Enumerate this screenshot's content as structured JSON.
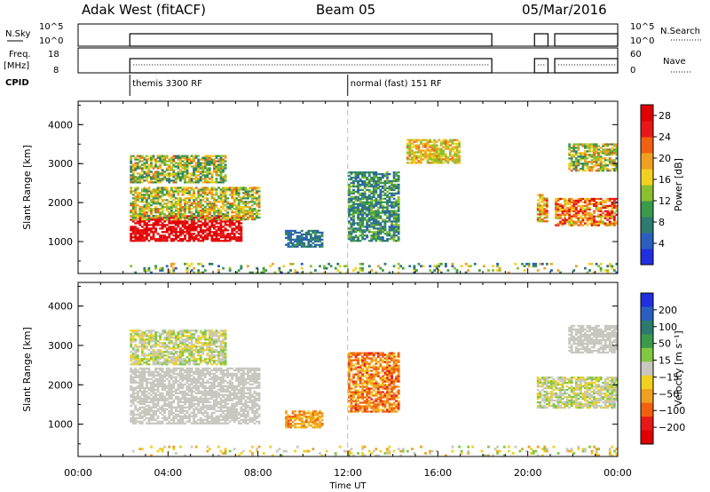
{
  "header": {
    "station": "Adak West (fitACF)",
    "beam": "Beam 05",
    "date": "05/Mar/2016"
  },
  "param_panels": {
    "nsky_label": "N.Sky",
    "nsearch_label": "N.Search",
    "freq_label_top": "Freq.",
    "freq_label_bottom": "[MHz]",
    "nave_label": "Nave",
    "cpid_label": "CPID",
    "nsky_ticks": [
      "10^5",
      "10^0"
    ],
    "nsearch_ticks": [
      "10^5",
      "10^0"
    ],
    "freq_ticks": [
      "18",
      "8"
    ],
    "nave_ticks": [
      "60",
      "0"
    ]
  },
  "cpid_segments": [
    {
      "start_hour": 2.3,
      "end_hour": 11.99,
      "label": "themis 3300 RF"
    },
    {
      "start_hour": 11.99,
      "end_hour": 24,
      "label": "normal (fast) 151 RF"
    }
  ],
  "chart_data": [
    {
      "type": "heatmap",
      "name": "power",
      "ylabel": "Slant Range [km]",
      "xlabel": "Time UT",
      "xlim": [
        0,
        24
      ],
      "ylim": [
        180,
        4600
      ],
      "x_ticks": [
        "00:00",
        "04:00",
        "08:00",
        "12:00",
        "16:00",
        "20:00",
        "00:00"
      ],
      "y_ticks": [
        1000,
        2000,
        3000,
        4000
      ],
      "colorbar": {
        "label": "Power [dB]",
        "ticks": [
          4,
          8,
          12,
          16,
          20,
          24,
          28
        ],
        "range": [
          0,
          30
        ],
        "colors": [
          "#2030e0",
          "#2a5fbf",
          "#2d7a6f",
          "#3a9a4a",
          "#8ac030",
          "#f0d020",
          "#f0a020",
          "#f06010",
          "#e81818",
          "#e00000"
        ]
      },
      "regions": [
        {
          "t0": 2.3,
          "t1": 7.2,
          "r0": 1000,
          "r1": 1650,
          "v0": 25,
          "v1": 30
        },
        {
          "t0": 2.3,
          "t1": 8.0,
          "r0": 1550,
          "r1": 2400,
          "v0": 8,
          "v1": 22
        },
        {
          "t0": 2.3,
          "t1": 6.5,
          "r0": 2500,
          "r1": 3200,
          "v0": 6,
          "v1": 22
        },
        {
          "t0": 9.2,
          "t1": 10.8,
          "r0": 850,
          "r1": 1300,
          "v0": 3,
          "v1": 10
        },
        {
          "t0": 12.0,
          "t1": 14.2,
          "r0": 1000,
          "r1": 2800,
          "v0": 4,
          "v1": 14
        },
        {
          "t0": 14.6,
          "t1": 17.0,
          "r0": 3000,
          "r1": 3600,
          "v0": 12,
          "v1": 22
        },
        {
          "t0": 20.4,
          "t1": 20.9,
          "r0": 1500,
          "r1": 2200,
          "v0": 12,
          "v1": 26
        },
        {
          "t0": 21.2,
          "t1": 24.0,
          "r0": 1400,
          "r1": 2100,
          "v0": 14,
          "v1": 28
        },
        {
          "t0": 21.8,
          "t1": 24.0,
          "r0": 2800,
          "r1": 3500,
          "v0": 8,
          "v1": 22
        },
        {
          "t0": 2.3,
          "t1": 24.0,
          "r0": 180,
          "r1": 420,
          "v0": 4,
          "v1": 20
        }
      ]
    },
    {
      "type": "heatmap",
      "name": "velocity",
      "ylabel": "Slant Range [km]",
      "xlabel": "Time UT",
      "xlim": [
        0,
        24
      ],
      "ylim": [
        180,
        4600
      ],
      "x_ticks": [
        "00:00",
        "04:00",
        "08:00",
        "12:00",
        "16:00",
        "20:00",
        "00:00"
      ],
      "y_ticks": [
        1000,
        2000,
        3000,
        4000
      ],
      "colorbar": {
        "label": "Velocity [m s⁻¹]",
        "ticks": [
          "200",
          "100",
          "50",
          "15",
          "−15",
          "−50",
          "−100",
          "−200"
        ],
        "colors": [
          "#2030e0",
          "#2a5fbf",
          "#2d7a6f",
          "#3a9a4a",
          "#80c840",
          "#c8c8c0",
          "#f0d020",
          "#f0a020",
          "#f06010",
          "#e81818",
          "#e00000"
        ]
      },
      "regions": [
        {
          "t0": 2.3,
          "t1": 8.0,
          "r0": 1000,
          "r1": 2400,
          "v0": 5,
          "v1": 5
        },
        {
          "t0": 2.3,
          "t1": 6.5,
          "r0": 2500,
          "r1": 3400,
          "v0": 4,
          "v1": 6
        },
        {
          "t0": 9.2,
          "t1": 10.8,
          "r0": 900,
          "r1": 1350,
          "v0": 6,
          "v1": 8
        },
        {
          "t0": 12.0,
          "t1": 14.2,
          "r0": 1300,
          "r1": 2800,
          "v0": 6,
          "v1": 9
        },
        {
          "t0": 20.4,
          "t1": 24.0,
          "r0": 1400,
          "r1": 2200,
          "v0": 4,
          "v1": 6
        },
        {
          "t0": 21.8,
          "t1": 24.0,
          "r0": 2800,
          "r1": 3500,
          "v0": 5,
          "v1": 5
        },
        {
          "t0": 2.3,
          "t1": 24.0,
          "r0": 180,
          "r1": 420,
          "v0": 4,
          "v1": 7
        }
      ]
    }
  ]
}
